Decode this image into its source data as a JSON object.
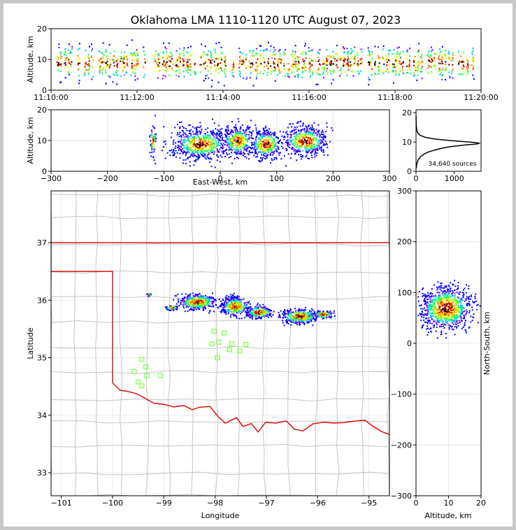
{
  "title": "Oklahoma LMA 1110-1120 UTC August 07, 2023",
  "colors": {
    "state_border": "#e00000",
    "county_lines": "#c4c4c4",
    "station_marker": "#80ff40",
    "density_scale": [
      "#0000ff",
      "#8000ff",
      "#00c0ff",
      "#00ff80",
      "#80ff00",
      "#ffff00",
      "#ff8000",
      "#ff0000",
      "#800000",
      "#000000",
      "#ffffff"
    ]
  },
  "chart_data": [
    {
      "id": "time_height",
      "type": "heatmap",
      "ylabel": "Altitude, km",
      "xlim": [
        "11:10:00",
        "11:20:00"
      ],
      "xticks": [
        "11:10:00",
        "11:12:00",
        "11:14:00",
        "11:16:00",
        "11:18:00",
        "11:20:00"
      ],
      "ylim": [
        0,
        20
      ],
      "yticks": [
        "0",
        "10",
        "20"
      ],
      "altitude_band_km": [
        2,
        14
      ],
      "core_altitude_km": 9
    },
    {
      "id": "ew_height",
      "type": "heatmap",
      "xlabel": "East-West, km",
      "ylabel": "Altitude, km",
      "xlim": [
        -300,
        300
      ],
      "xticks": [
        "−300",
        "−200",
        "−100",
        "0",
        "100",
        "200",
        "300"
      ],
      "ylim": [
        0,
        20
      ],
      "yticks": [
        "0",
        "10",
        "20"
      ],
      "clusters": [
        {
          "x_center": -35,
          "x_halfwidth": 45,
          "z_center": 9
        },
        {
          "x_center": 30,
          "x_halfwidth": 25,
          "z_center": 10
        },
        {
          "x_center": 80,
          "x_halfwidth": 25,
          "z_center": 9
        },
        {
          "x_center": 150,
          "x_halfwidth": 35,
          "z_center": 10
        },
        {
          "x_center": -120,
          "x_halfwidth": 5,
          "z_center": 10
        }
      ]
    },
    {
      "id": "altitude_histogram",
      "type": "line",
      "annotation": "34,640 sources",
      "xlim": [
        0,
        1700
      ],
      "xticks": [
        "0",
        "1000"
      ],
      "ylim": [
        0,
        21
      ],
      "yticks": [
        "0",
        "10",
        "20"
      ],
      "x": [
        5,
        15,
        30,
        60,
        120,
        200,
        300,
        420,
        560,
        720,
        900,
        1100,
        1300,
        1500,
        1620,
        1650,
        1560,
        1300,
        900,
        500,
        240,
        110,
        50,
        20,
        8,
        3,
        1
      ],
      "y": [
        1,
        2,
        3,
        4,
        5,
        5.8,
        6.5,
        7,
        7.5,
        8,
        8.4,
        8.7,
        9,
        9.2,
        9.4,
        9.6,
        9.8,
        10.1,
        10.5,
        11,
        11.6,
        12.3,
        13,
        14,
        15.5,
        17,
        19
      ]
    },
    {
      "id": "plan_view",
      "type": "heatmap",
      "xlabel": "Longitude",
      "ylabel": "Latitude",
      "xlim": [
        -101.2,
        -94.6
      ],
      "xticks": [
        "−101",
        "−100",
        "−99",
        "−98",
        "−97",
        "−96",
        "−95"
      ],
      "ylim": [
        32.6,
        37.9
      ],
      "yticks": [
        "33",
        "34",
        "35",
        "36",
        "37"
      ],
      "storm_clusters": [
        {
          "lon": -98.85,
          "lat": 35.88,
          "dlon": 0.12,
          "dlat": 0.04
        },
        {
          "lon": -98.35,
          "lat": 35.98,
          "dlon": 0.35,
          "dlat": 0.13
        },
        {
          "lon": -97.62,
          "lat": 35.9,
          "dlon": 0.25,
          "dlat": 0.16
        },
        {
          "lon": -97.15,
          "lat": 35.8,
          "dlon": 0.25,
          "dlat": 0.1
        },
        {
          "lon": -96.35,
          "lat": 35.73,
          "dlon": 0.35,
          "dlat": 0.12
        },
        {
          "lon": -95.9,
          "lat": 35.76,
          "dlon": 0.2,
          "dlat": 0.06
        },
        {
          "lon": -99.3,
          "lat": 36.1,
          "dlon": 0.04,
          "dlat": 0.03
        }
      ],
      "stations": [
        {
          "lon": -99.43,
          "lat": 34.97
        },
        {
          "lon": -99.35,
          "lat": 34.84
        },
        {
          "lon": -99.58,
          "lat": 34.76
        },
        {
          "lon": -99.33,
          "lat": 34.69
        },
        {
          "lon": -99.07,
          "lat": 34.69
        },
        {
          "lon": -99.5,
          "lat": 34.58
        },
        {
          "lon": -99.43,
          "lat": 34.51
        },
        {
          "lon": -98.02,
          "lat": 35.46
        },
        {
          "lon": -97.82,
          "lat": 35.43
        },
        {
          "lon": -98.07,
          "lat": 35.24
        },
        {
          "lon": -97.93,
          "lat": 35.27
        },
        {
          "lon": -97.68,
          "lat": 35.24
        },
        {
          "lon": -97.72,
          "lat": 35.14
        },
        {
          "lon": -97.52,
          "lat": 35.12
        },
        {
          "lon": -97.4,
          "lat": 35.23
        },
        {
          "lon": -97.95,
          "lat": 35.0
        }
      ]
    },
    {
      "id": "ns_height",
      "type": "heatmap",
      "xlabel": "Altitude, km",
      "ylabel": "North-South, km",
      "xlim": [
        0,
        20
      ],
      "xticks": [
        "0",
        "10",
        "20"
      ],
      "ylim": [
        -300,
        300
      ],
      "yticks": [
        "300",
        "200",
        "100",
        "0",
        "−100",
        "−200",
        "−300"
      ],
      "core": {
        "z_center": 9,
        "y_center": 70,
        "y_halfwidth": 30
      }
    }
  ]
}
